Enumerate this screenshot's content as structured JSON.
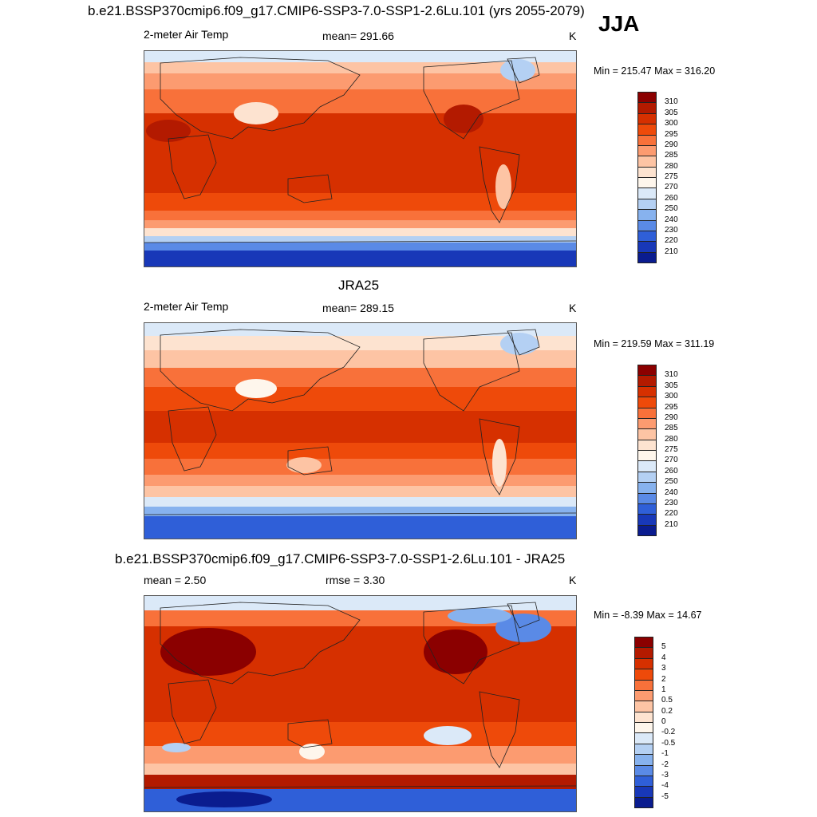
{
  "header": {
    "case_title": "b.e21.BSSP370cmip6.f09_g17.CMIP6-SSP3-7.0-SSP1-2.6Lu.101 (yrs 2055-2079)",
    "season": "JJA"
  },
  "panels": [
    {
      "id": "model",
      "variable": "2-meter Air Temp",
      "stat": "mean= 291.66",
      "units": "K",
      "minmax": "Min = 215.47 Max = 316.20",
      "colorbar": {
        "ticks": [
          "310",
          "305",
          "300",
          "295",
          "290",
          "285",
          "280",
          "275",
          "270",
          "260",
          "250",
          "240",
          "230",
          "220",
          "210"
        ],
        "colors": [
          "#8b0000",
          "#b31a00",
          "#d63000",
          "#ee4a0a",
          "#f8713a",
          "#fc9b70",
          "#fdc4a4",
          "#fde3d0",
          "#fef6ec",
          "#dbe9f8",
          "#b4d0f3",
          "#87b2ee",
          "#5a8ae6",
          "#2f5fd8",
          "#1838b8",
          "#0a1c8f"
        ]
      }
    },
    {
      "id": "obs",
      "title": "JRA25",
      "variable": "2-meter Air Temp",
      "stat": "mean= 289.15",
      "units": "K",
      "minmax": "Min = 219.59 Max = 311.19",
      "colorbar": {
        "ticks": [
          "310",
          "305",
          "300",
          "295",
          "290",
          "285",
          "280",
          "275",
          "270",
          "260",
          "250",
          "240",
          "230",
          "220",
          "210"
        ],
        "colors": [
          "#8b0000",
          "#b31a00",
          "#d63000",
          "#ee4a0a",
          "#f8713a",
          "#fc9b70",
          "#fdc4a4",
          "#fde3d0",
          "#fef6ec",
          "#dbe9f8",
          "#b4d0f3",
          "#87b2ee",
          "#5a8ae6",
          "#2f5fd8",
          "#1838b8",
          "#0a1c8f"
        ]
      }
    },
    {
      "id": "diff",
      "title": "b.e21.BSSP370cmip6.f09_g17.CMIP6-SSP3-7.0-SSP1-2.6Lu.101 - JRA25",
      "stat_mean": "mean =   2.50",
      "stat_rmse": "rmse =   3.30",
      "units": "K",
      "minmax": "Min =  -8.39 Max =  14.67",
      "colorbar": {
        "ticks": [
          "5",
          "4",
          "3",
          "2",
          "1",
          "0.5",
          "0.2",
          "0",
          "-0.2",
          "-0.5",
          "-1",
          "-2",
          "-3",
          "-4",
          "-5"
        ],
        "colors": [
          "#8b0000",
          "#b31a00",
          "#d63000",
          "#ee4a0a",
          "#f8713a",
          "#fc9b70",
          "#fdc4a4",
          "#fde3d0",
          "#fef6ec",
          "#dbe9f8",
          "#b4d0f3",
          "#87b2ee",
          "#5a8ae6",
          "#2f5fd8",
          "#1838b8",
          "#0a1c8f"
        ]
      }
    }
  ]
}
